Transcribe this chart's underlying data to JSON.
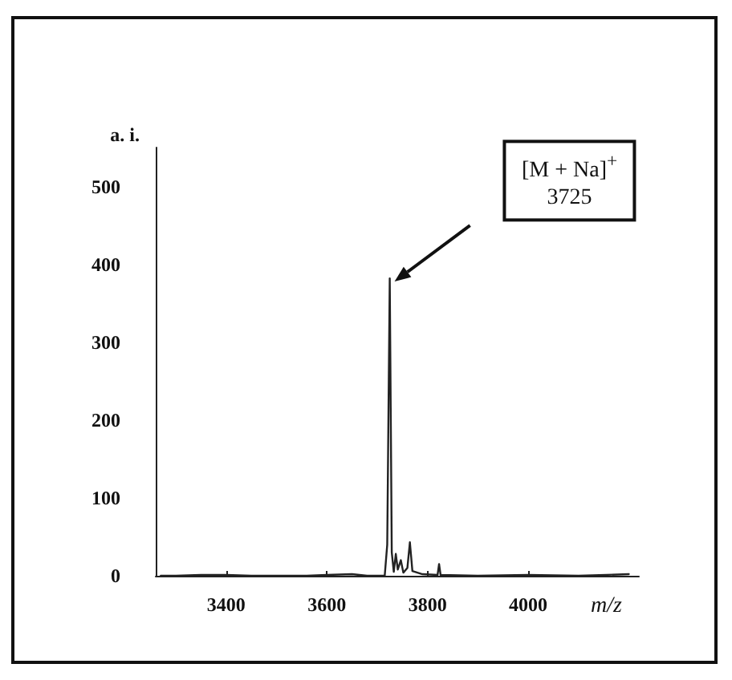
{
  "chart_data": {
    "type": "line",
    "xlabel": "m/z",
    "ylabel": "a. i.",
    "x": [
      3270,
      3300,
      3350,
      3400,
      3450,
      3500,
      3560,
      3600,
      3650,
      3680,
      3715,
      3720,
      3725,
      3729,
      3733,
      3737,
      3741,
      3747,
      3752,
      3760,
      3765,
      3770,
      3790,
      3820,
      3823,
      3826,
      3900,
      4000,
      4100,
      4200
    ],
    "series": [
      {
        "color": "#222222",
        "values": [
          0,
          0,
          1,
          1,
          0,
          0,
          0,
          1,
          2,
          0,
          0,
          40,
          382,
          30,
          5,
          28,
          8,
          20,
          4,
          10,
          43,
          6,
          2,
          1,
          15,
          1,
          0,
          1,
          0,
          2
        ]
      }
    ],
    "xlim": [
      3260,
      4220
    ],
    "xticks": [
      3400,
      3600,
      3800,
      4000
    ],
    "ylim": [
      0,
      550
    ],
    "yticks": [
      0,
      100,
      200,
      300,
      400,
      500
    ],
    "grid": false,
    "marker": "none",
    "line_style": "solid",
    "annotations": [
      "[M + Na]$^{+}$\n3725"
    ]
  }
}
